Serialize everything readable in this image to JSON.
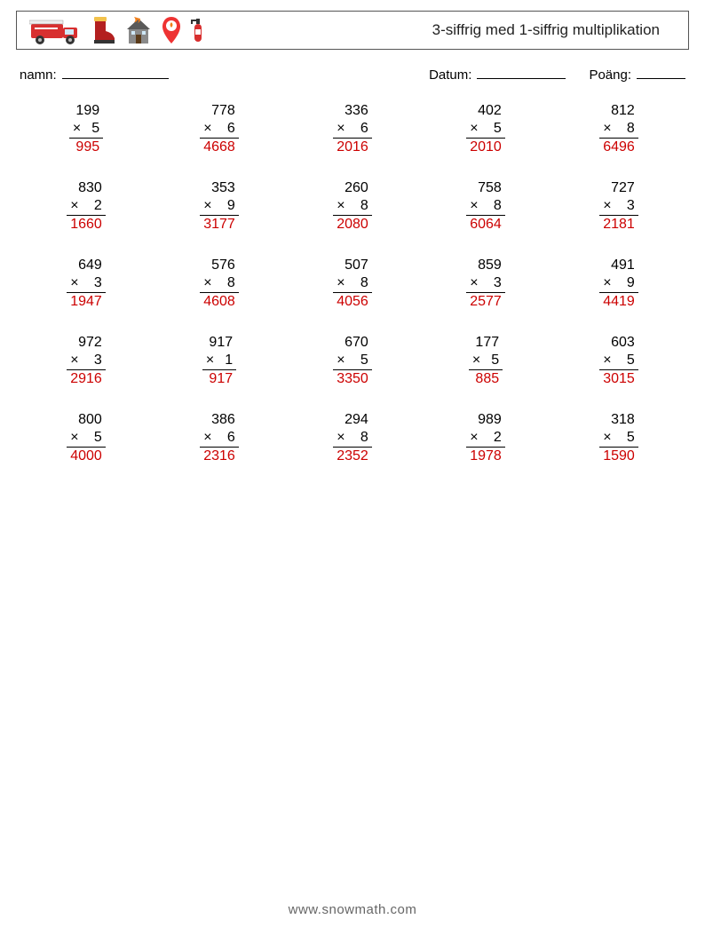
{
  "header": {
    "title": "3-siffrig med 1-siffrig multiplikation"
  },
  "meta": {
    "name_label": "namn:",
    "date_label": "Datum:",
    "score_label": "Poäng:"
  },
  "op_symbol": "×",
  "answer_color": "#cc0000",
  "problems": [
    [
      {
        "a": "199",
        "b": "5",
        "ans": "995"
      },
      {
        "a": "778",
        "b": "6",
        "ans": "4668"
      },
      {
        "a": "336",
        "b": "6",
        "ans": "2016"
      },
      {
        "a": "402",
        "b": "5",
        "ans": "2010"
      },
      {
        "a": "812",
        "b": "8",
        "ans": "6496"
      }
    ],
    [
      {
        "a": "830",
        "b": "2",
        "ans": "1660"
      },
      {
        "a": "353",
        "b": "9",
        "ans": "3177"
      },
      {
        "a": "260",
        "b": "8",
        "ans": "2080"
      },
      {
        "a": "758",
        "b": "8",
        "ans": "6064"
      },
      {
        "a": "727",
        "b": "3",
        "ans": "2181"
      }
    ],
    [
      {
        "a": "649",
        "b": "3",
        "ans": "1947"
      },
      {
        "a": "576",
        "b": "8",
        "ans": "4608"
      },
      {
        "a": "507",
        "b": "8",
        "ans": "4056"
      },
      {
        "a": "859",
        "b": "3",
        "ans": "2577"
      },
      {
        "a": "491",
        "b": "9",
        "ans": "4419"
      }
    ],
    [
      {
        "a": "972",
        "b": "3",
        "ans": "2916"
      },
      {
        "a": "917",
        "b": "1",
        "ans": "917"
      },
      {
        "a": "670",
        "b": "5",
        "ans": "3350"
      },
      {
        "a": "177",
        "b": "5",
        "ans": "885"
      },
      {
        "a": "603",
        "b": "5",
        "ans": "3015"
      }
    ],
    [
      {
        "a": "800",
        "b": "5",
        "ans": "4000"
      },
      {
        "a": "386",
        "b": "6",
        "ans": "2316"
      },
      {
        "a": "294",
        "b": "8",
        "ans": "2352"
      },
      {
        "a": "989",
        "b": "2",
        "ans": "1978"
      },
      {
        "a": "318",
        "b": "5",
        "ans": "1590"
      }
    ]
  ],
  "footer": {
    "text": "www.snowmath.com"
  }
}
